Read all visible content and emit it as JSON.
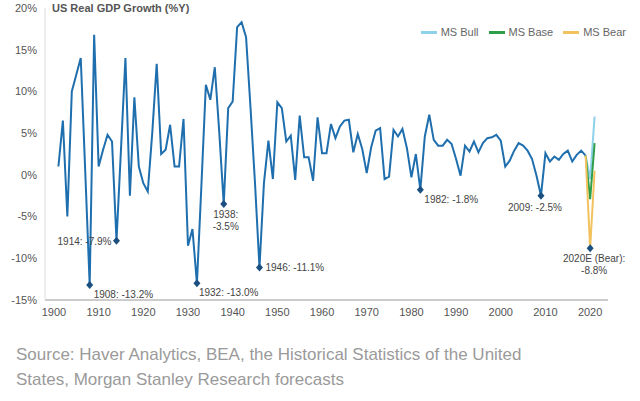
{
  "chart_data": {
    "type": "line",
    "title": "US Real GDP Growth (%Y)",
    "source": "Source: Haver Analytics, BEA, the Historical Statistics of the United States, Morgan Stanley Research forecasts",
    "series": [
      {
        "color": "#1f6fae",
        "x": [
          1901,
          1902,
          1903,
          1904,
          1905,
          1906,
          1907,
          1908,
          1909,
          1910,
          1911,
          1912,
          1913,
          1914,
          1915,
          1916,
          1917,
          1918,
          1919,
          1920,
          1921,
          1922,
          1923,
          1924,
          1925,
          1926,
          1927,
          1928,
          1929,
          1930,
          1931,
          1932,
          1933,
          1934,
          1935,
          1936,
          1937,
          1938,
          1939,
          1940,
          1941,
          1942,
          1943,
          1944,
          1945,
          1946,
          1947,
          1948,
          1949,
          1950,
          1951,
          1952,
          1953,
          1954,
          1955,
          1956,
          1957,
          1958,
          1959,
          1960,
          1961,
          1962,
          1963,
          1964,
          1965,
          1966,
          1967,
          1968,
          1969,
          1970,
          1971,
          1972,
          1973,
          1974,
          1975,
          1976,
          1977,
          1978,
          1979,
          1980,
          1981,
          1982,
          1983,
          1984,
          1985,
          1986,
          1987,
          1988,
          1989,
          1990,
          1991,
          1992,
          1993,
          1994,
          1995,
          1996,
          1997,
          1998,
          1999,
          2000,
          2001,
          2002,
          2003,
          2004,
          2005,
          2006,
          2007,
          2008,
          2009,
          2010,
          2011,
          2012,
          2013,
          2014,
          2015,
          2016,
          2017,
          2018,
          2019
        ],
        "values": [
          1,
          6.5,
          -5,
          10,
          12,
          14,
          0.5,
          -13.2,
          16.8,
          1,
          3,
          4.8,
          4,
          -7.9,
          3,
          14,
          -2.5,
          9.3,
          1,
          -1,
          -2,
          5,
          13.3,
          2.5,
          3,
          6,
          1,
          1,
          6.7,
          -8.5,
          -6.5,
          -13,
          -1.3,
          10.8,
          9,
          12.9,
          5.1,
          -3.5,
          8,
          8.8,
          17.7,
          18.3,
          16.5,
          8,
          -1,
          -11.1,
          -1,
          4.1,
          -0.5,
          8.7,
          8,
          4,
          4.7,
          -0.6,
          7.1,
          2.1,
          2.1,
          -0.7,
          6.9,
          2.6,
          2.6,
          6.1,
          4.4,
          5.8,
          6.5,
          6.6,
          2.7,
          4.9,
          3.1,
          0.2,
          3.3,
          5.3,
          5.6,
          -0.5,
          -0.2,
          5.4,
          4.6,
          5.5,
          3.2,
          -0.3,
          2.5,
          -1.8,
          4.6,
          7.2,
          4.2,
          3.5,
          3.5,
          4.2,
          3.7,
          1.9,
          -0.1,
          3.5,
          2.8,
          4,
          2.7,
          3.8,
          4.4,
          4.5,
          4.8,
          4.1,
          1,
          1.7,
          2.9,
          3.8,
          3.5,
          2.9,
          1.9,
          -0.1,
          -2.5,
          2.6,
          1.6,
          2.2,
          1.8,
          2.5,
          2.9,
          1.6,
          2.4,
          2.9,
          2.3
        ]
      },
      {
        "name": "MS Bull",
        "color": "#8ed1ea",
        "x": [
          2019,
          2020,
          2021
        ],
        "values": [
          2.3,
          -0.5,
          7
        ]
      },
      {
        "name": "MS Base",
        "color": "#2e9e48",
        "x": [
          2019,
          2020,
          2021
        ],
        "values": [
          2.3,
          -2.9,
          3.8
        ]
      },
      {
        "name": "MS Bear",
        "color": "#f2c25e",
        "x": [
          2019,
          2020,
          2021
        ],
        "values": [
          2.3,
          -8.8,
          0.5
        ]
      }
    ],
    "xlim": [
      1898,
      2024
    ],
    "xticks": [
      1900,
      1910,
      1920,
      1930,
      1940,
      1950,
      1960,
      1970,
      1980,
      1990,
      2000,
      2010,
      2020
    ],
    "ylim": [
      -15,
      20
    ],
    "yticks": [
      {
        "value": -15,
        "label": "-15%"
      },
      {
        "value": -10,
        "label": "-10%"
      },
      {
        "value": -5,
        "label": "-5%"
      },
      {
        "value": 0,
        "label": "0%"
      },
      {
        "value": 5,
        "label": "5%"
      },
      {
        "value": 10,
        "label": "10%"
      },
      {
        "value": 15,
        "label": "15%"
      },
      {
        "value": 20,
        "label": "20%"
      }
    ],
    "grid": false,
    "legend": "top right",
    "annotations": [
      {
        "x": 1908,
        "y": -13.2,
        "text": "1908: -13.2%"
      },
      {
        "x": 1914,
        "y": -7.9,
        "text": "1914: -7.9%"
      },
      {
        "x": 1932,
        "y": -13,
        "text": "1932: -13.0%"
      },
      {
        "x": 1938,
        "y": -3.5,
        "text": "1938: -3.5%"
      },
      {
        "x": 1946,
        "y": -11.1,
        "text": "1946: -11.1%"
      },
      {
        "x": 1982,
        "y": -1.8,
        "text": "1982: -1.8%"
      },
      {
        "x": 2009,
        "y": -2.5,
        "text": "2009: -2.5%"
      },
      {
        "x": 2020,
        "y": -8.8,
        "text": "2020E (Bear): -8.8%"
      }
    ]
  }
}
